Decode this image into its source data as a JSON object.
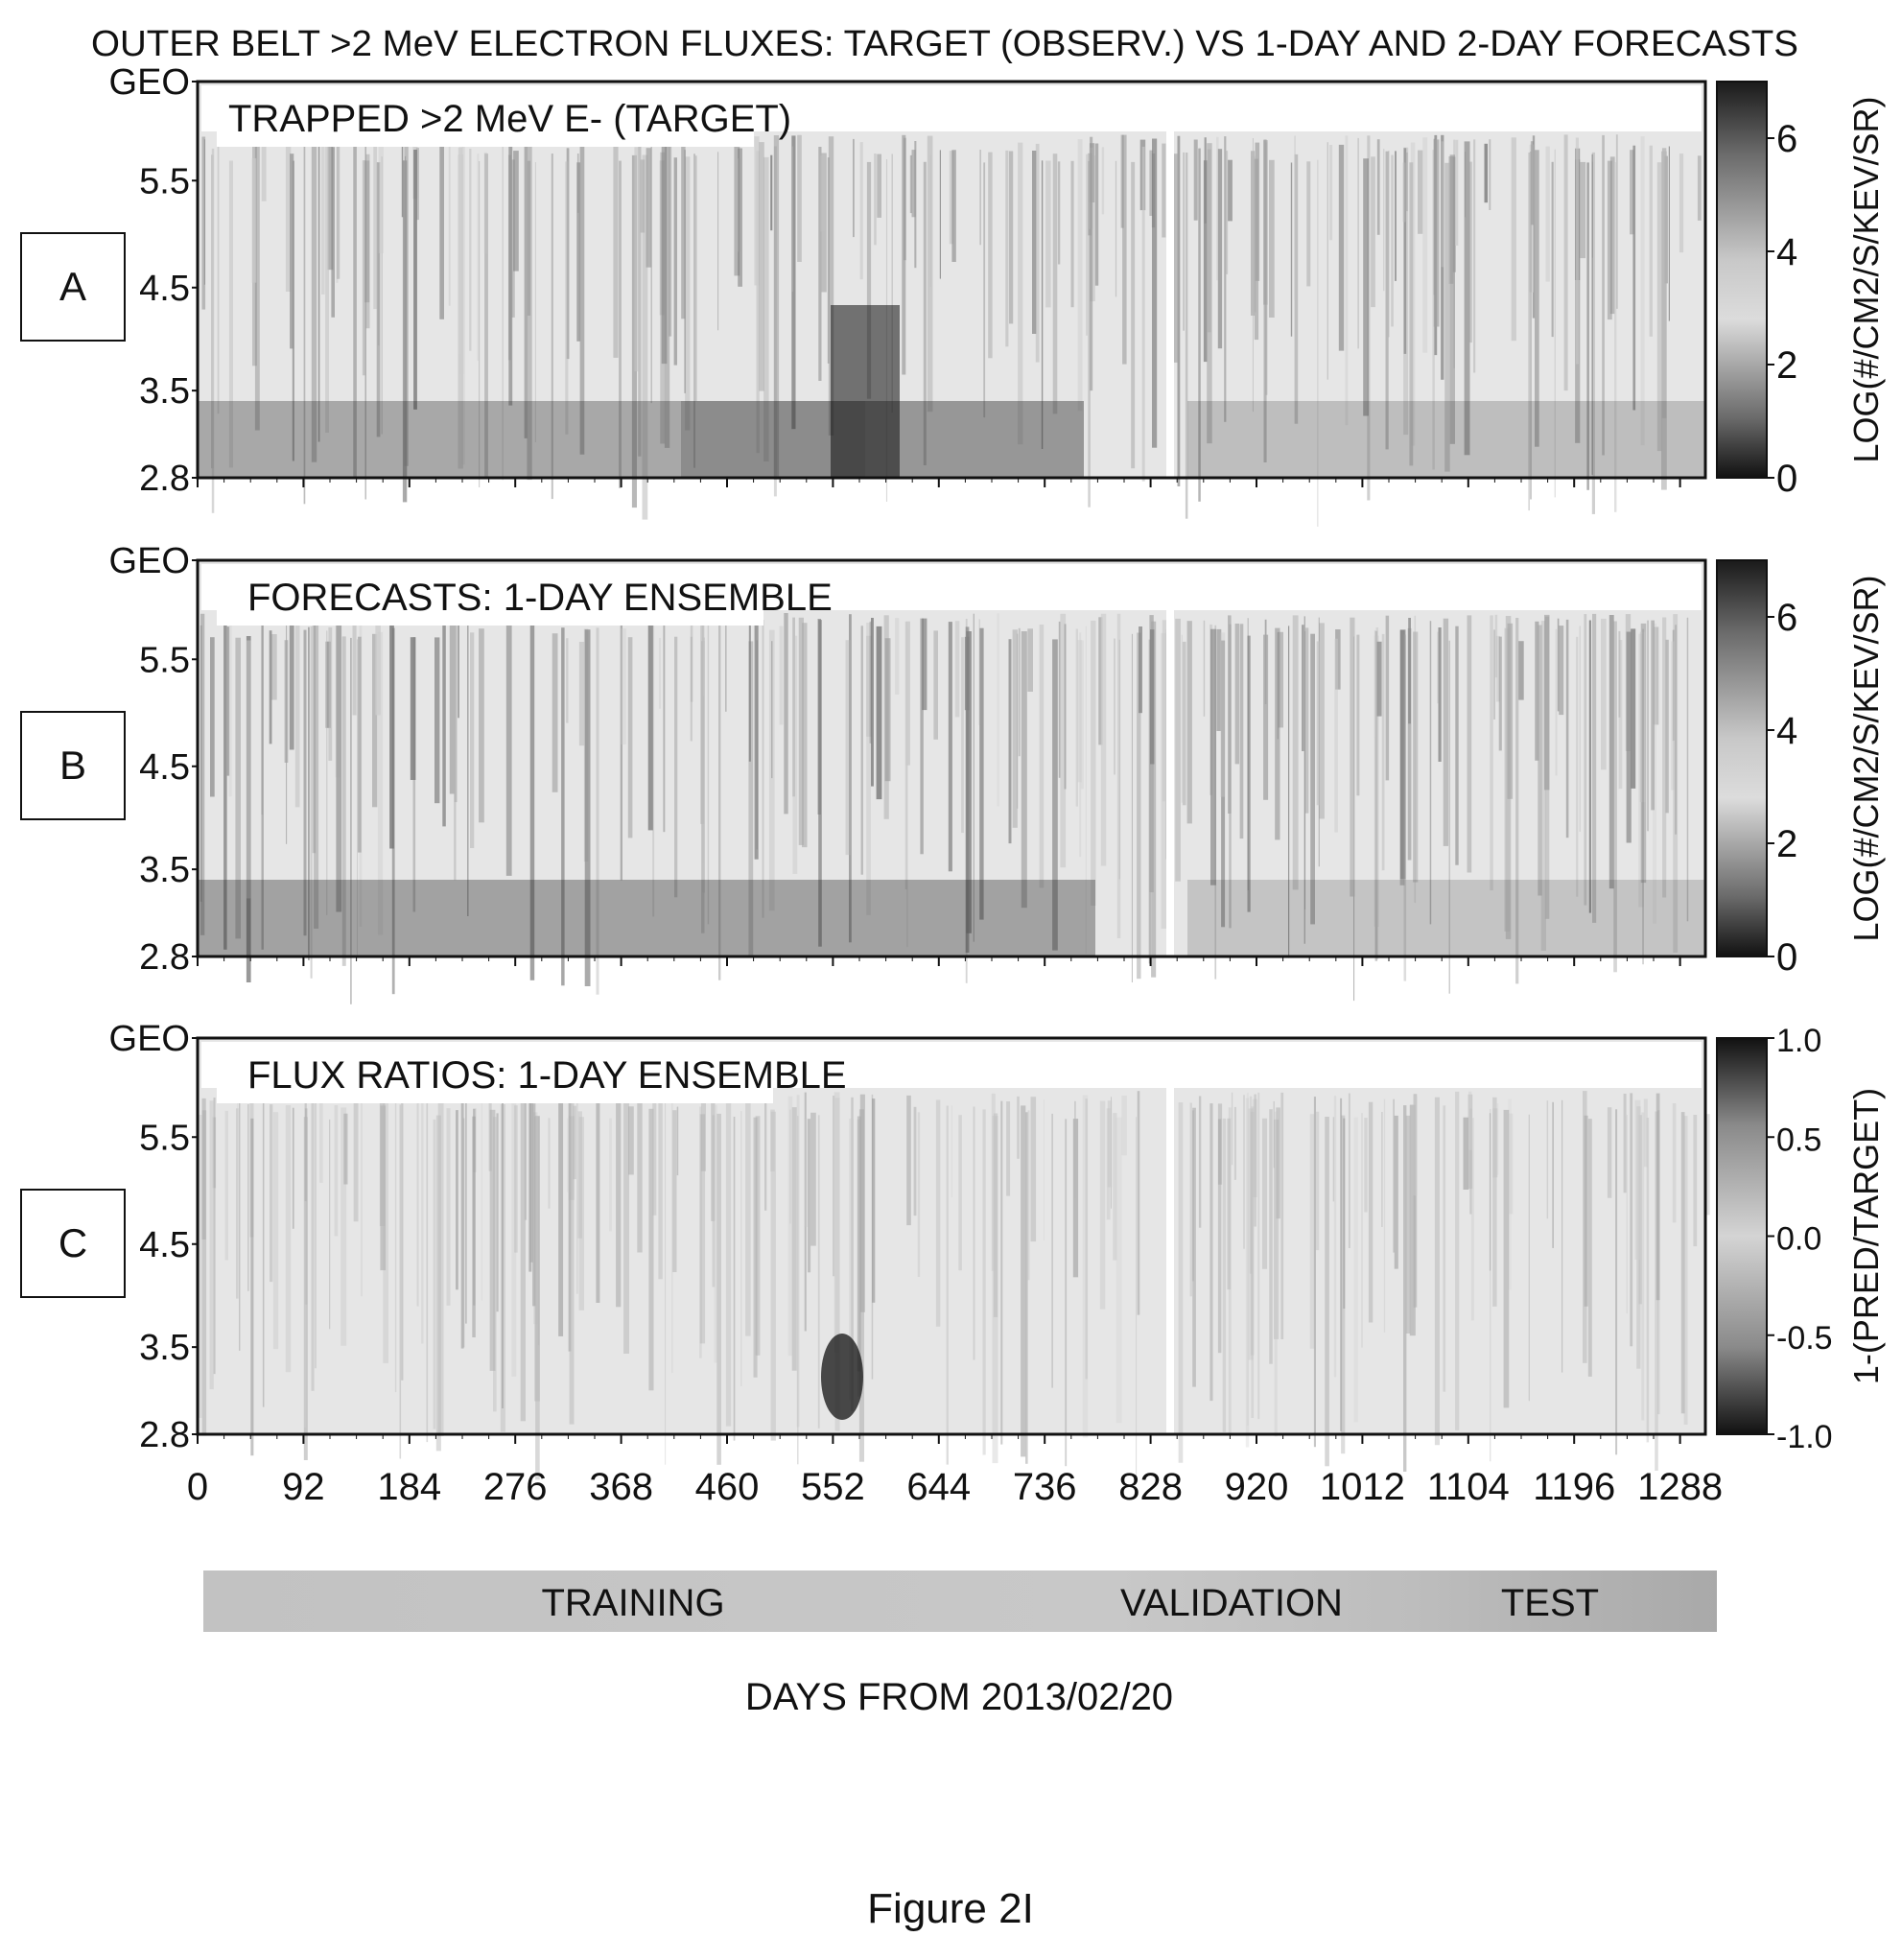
{
  "figure": {
    "title": "OUTER BELT >2 MeV ELECTRON FLUXES: TARGET (OBSERV.) VS 1-DAY AND 2-DAY FORECASTS",
    "caption": "Figure 2I",
    "xlabel": "DAYS FROM 2013/02/20",
    "x_ticks": [
      "0",
      "92",
      "184",
      "276",
      "368",
      "460",
      "552",
      "644",
      "736",
      "828",
      "920",
      "1012",
      "1104",
      "1196",
      "1288"
    ],
    "y_ticks": [
      "GEO",
      "5.5",
      "4.5",
      "3.5",
      "2.8"
    ],
    "phases": [
      "TRAINING",
      "VALIDATION",
      "TEST"
    ]
  },
  "chart_data": [
    {
      "type": "heatmap",
      "panel": "A",
      "title": "TRAPPED >2 MeV E- (TARGET)",
      "xlabel": "DAYS FROM 2013/02/20",
      "xlim": [
        0,
        1310
      ],
      "y_categories": [
        "GEO",
        "5.5",
        "4.5",
        "3.5",
        "2.8"
      ],
      "colorbar": {
        "label": "LOG(#/CM2/S/KEV/SR)",
        "ticks": [
          "6",
          "4",
          "2",
          "0"
        ],
        "range": [
          0,
          7
        ]
      },
      "data_gap_day": 845
    },
    {
      "type": "heatmap",
      "panel": "B",
      "title": "FORECASTS: 1-DAY ENSEMBLE",
      "xlabel": "DAYS FROM 2013/02/20",
      "xlim": [
        0,
        1310
      ],
      "y_categories": [
        "GEO",
        "5.5",
        "4.5",
        "3.5",
        "2.8"
      ],
      "colorbar": {
        "label": "LOG(#/CM2/S/KEV/SR)",
        "ticks": [
          "6",
          "4",
          "2",
          "0"
        ],
        "range": [
          0,
          7
        ]
      },
      "data_gap_day": 845
    },
    {
      "type": "heatmap",
      "panel": "C",
      "title": "FLUX RATIOS: 1-DAY ENSEMBLE",
      "xlabel": "DAYS FROM 2013/02/20",
      "xlim": [
        0,
        1310
      ],
      "y_categories": [
        "GEO",
        "5.5",
        "4.5",
        "3.5",
        "2.8"
      ],
      "colorbar": {
        "label": "1-(PRED/TARGET)",
        "ticks": [
          "1.0",
          "0.5",
          "0.0",
          "-0.5",
          "-1.0"
        ],
        "range": [
          -1,
          1
        ]
      },
      "data_gap_day": 845
    }
  ]
}
